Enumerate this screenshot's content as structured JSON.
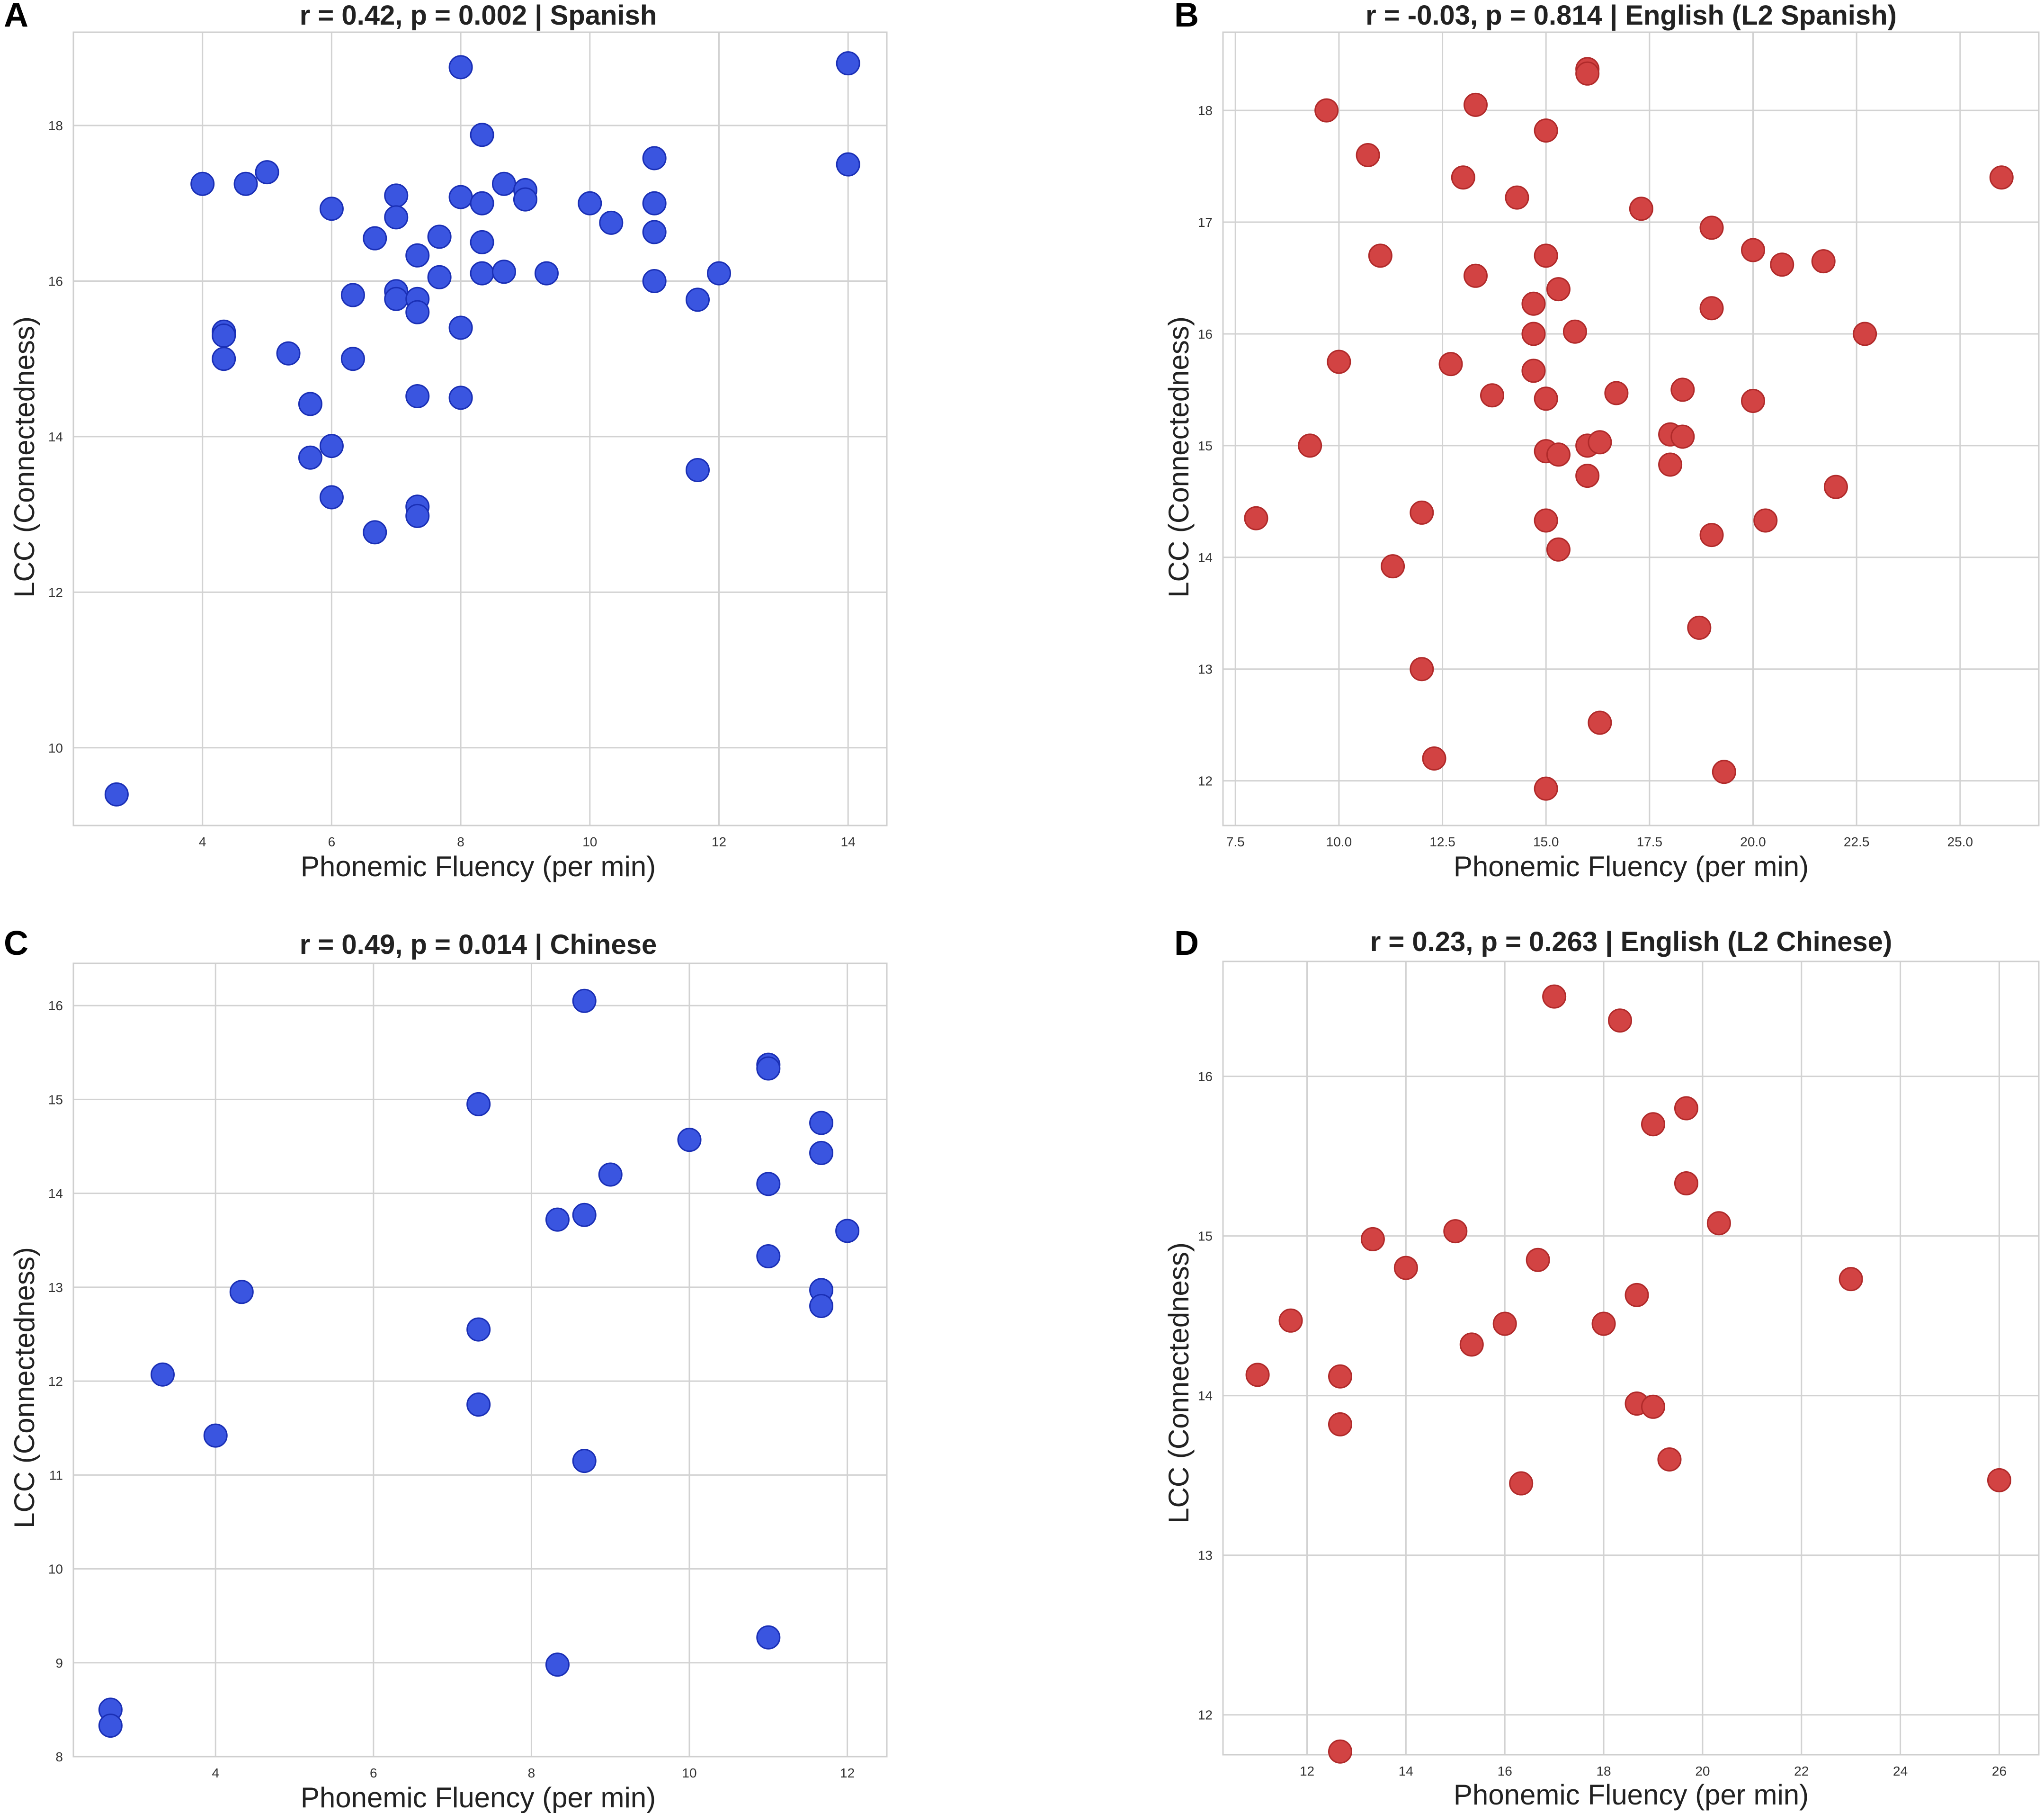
{
  "chart_data": [
    {
      "panel": "A",
      "type": "scatter",
      "title": "r = 0.42, p = 0.002 | Spanish",
      "xlabel": "Phonemic Fluency (per min)",
      "ylabel": "LCC (Connectedness)",
      "xlim": [
        2.0,
        14.6
      ],
      "ylim": [
        9.0,
        19.2
      ],
      "xticks": [
        4,
        6,
        8,
        10,
        12,
        14
      ],
      "xtick_labels": [
        "4",
        "6",
        "8",
        "10",
        "12",
        "14"
      ],
      "yticks": [
        10,
        12,
        14,
        16,
        18
      ],
      "ytick_labels": [
        "10",
        "12",
        "14",
        "16",
        "18"
      ],
      "marker_color": "#3a55e0",
      "marker_edge": "#1a2fb5",
      "points": [
        [
          2.67,
          9.4
        ],
        [
          4.0,
          17.25
        ],
        [
          4.33,
          15.35
        ],
        [
          4.33,
          15.3
        ],
        [
          4.33,
          15.0
        ],
        [
          4.67,
          17.25
        ],
        [
          5.0,
          17.4
        ],
        [
          5.33,
          15.07
        ],
        [
          5.67,
          14.42
        ],
        [
          5.67,
          13.73
        ],
        [
          6.0,
          16.93
        ],
        [
          6.0,
          13.88
        ],
        [
          6.0,
          13.22
        ],
        [
          6.33,
          15.82
        ],
        [
          6.33,
          15.0
        ],
        [
          6.67,
          16.55
        ],
        [
          6.67,
          12.77
        ],
        [
          7.0,
          17.1
        ],
        [
          7.0,
          16.82
        ],
        [
          7.0,
          15.87
        ],
        [
          7.0,
          15.77
        ],
        [
          7.33,
          16.33
        ],
        [
          7.33,
          15.77
        ],
        [
          7.33,
          15.6
        ],
        [
          7.33,
          14.52
        ],
        [
          7.33,
          13.1
        ],
        [
          7.33,
          12.98
        ],
        [
          7.67,
          16.57
        ],
        [
          7.67,
          16.05
        ],
        [
          8.0,
          18.75
        ],
        [
          8.0,
          17.08
        ],
        [
          8.0,
          15.4
        ],
        [
          8.0,
          14.5
        ],
        [
          8.33,
          17.88
        ],
        [
          8.33,
          17.0
        ],
        [
          8.33,
          16.5
        ],
        [
          8.33,
          16.1
        ],
        [
          8.67,
          17.25
        ],
        [
          8.67,
          16.12
        ],
        [
          9.0,
          17.17
        ],
        [
          9.0,
          17.05
        ],
        [
          9.33,
          16.1
        ],
        [
          10.0,
          17.0
        ],
        [
          10.33,
          16.75
        ],
        [
          11.0,
          17.58
        ],
        [
          11.0,
          17.0
        ],
        [
          11.0,
          16.63
        ],
        [
          11.0,
          16.0
        ],
        [
          11.67,
          15.76
        ],
        [
          11.67,
          13.57
        ],
        [
          12.0,
          16.1
        ],
        [
          14.0,
          18.8
        ],
        [
          14.0,
          17.5
        ]
      ]
    },
    {
      "panel": "B",
      "type": "scatter",
      "title": "r = -0.03, p = 0.814 | English (L2 Spanish)",
      "xlabel": "Phonemic Fluency (per min)",
      "ylabel": "LCC (Connectedness)",
      "xlim": [
        7.2,
        26.9
      ],
      "ylim": [
        11.6,
        18.7
      ],
      "xticks": [
        7.5,
        10.0,
        12.5,
        15.0,
        17.5,
        20.0,
        22.5,
        25.0
      ],
      "xtick_labels": [
        "7.5",
        "10.0",
        "12.5",
        "15.0",
        "17.5",
        "20.0",
        "22.5",
        "25.0"
      ],
      "yticks": [
        12,
        13,
        14,
        15,
        16,
        17,
        18
      ],
      "ytick_labels": [
        "12",
        "13",
        "14",
        "15",
        "16",
        "17",
        "18"
      ],
      "marker_color": "#d24343",
      "marker_edge": "#b02a2a",
      "points": [
        [
          8.0,
          14.35
        ],
        [
          9.3,
          15.0
        ],
        [
          9.7,
          18.0
        ],
        [
          10.0,
          15.75
        ],
        [
          10.7,
          17.6
        ],
        [
          11.0,
          16.7
        ],
        [
          11.3,
          13.92
        ],
        [
          12.0,
          14.4
        ],
        [
          12.0,
          13.0
        ],
        [
          12.3,
          12.2
        ],
        [
          12.7,
          15.73
        ],
        [
          13.0,
          17.4
        ],
        [
          13.3,
          18.05
        ],
        [
          13.3,
          16.52
        ],
        [
          13.7,
          15.45
        ],
        [
          14.3,
          17.22
        ],
        [
          14.7,
          16.27
        ],
        [
          14.7,
          16.0
        ],
        [
          14.7,
          15.67
        ],
        [
          15.0,
          17.82
        ],
        [
          15.0,
          16.7
        ],
        [
          15.0,
          15.42
        ],
        [
          15.0,
          14.95
        ],
        [
          15.0,
          14.33
        ],
        [
          15.0,
          11.93
        ],
        [
          15.3,
          16.4
        ],
        [
          15.3,
          14.92
        ],
        [
          15.3,
          14.07
        ],
        [
          15.7,
          16.02
        ],
        [
          16.0,
          18.37
        ],
        [
          16.0,
          18.33
        ],
        [
          16.0,
          15.0
        ],
        [
          16.0,
          14.73
        ],
        [
          16.3,
          15.03
        ],
        [
          16.3,
          12.52
        ],
        [
          16.7,
          15.47
        ],
        [
          17.3,
          17.12
        ],
        [
          18.0,
          15.1
        ],
        [
          18.0,
          14.83
        ],
        [
          18.3,
          15.5
        ],
        [
          18.3,
          15.08
        ],
        [
          18.7,
          13.37
        ],
        [
          19.0,
          16.95
        ],
        [
          19.0,
          16.23
        ],
        [
          19.0,
          14.2
        ],
        [
          19.3,
          12.08
        ],
        [
          20.0,
          16.75
        ],
        [
          20.0,
          15.4
        ],
        [
          20.3,
          14.33
        ],
        [
          20.7,
          16.62
        ],
        [
          21.7,
          16.65
        ],
        [
          22.0,
          14.63
        ],
        [
          22.7,
          16.0
        ],
        [
          26.0,
          17.4
        ]
      ]
    },
    {
      "panel": "C",
      "type": "scatter",
      "title": "r = 0.49, p = 0.014 | Chinese",
      "xlabel": "Phonemic Fluency (per min)",
      "ylabel": "LCC (Connectedness)",
      "xlim": [
        2.2,
        12.5
      ],
      "ylim": [
        8.0,
        16.45
      ],
      "xticks": [
        4,
        6,
        8,
        10,
        12
      ],
      "xtick_labels": [
        "4",
        "6",
        "8",
        "10",
        "12"
      ],
      "yticks": [
        8,
        9,
        10,
        11,
        12,
        13,
        14,
        15,
        16
      ],
      "ytick_labels": [
        "8",
        "9",
        "10",
        "11",
        "12",
        "13",
        "14",
        "15",
        "16"
      ],
      "marker_color": "#3a55e0",
      "marker_edge": "#1a2fb5",
      "points": [
        [
          2.67,
          8.5
        ],
        [
          2.67,
          8.33
        ],
        [
          3.33,
          12.07
        ],
        [
          4.0,
          11.42
        ],
        [
          4.33,
          12.95
        ],
        [
          7.33,
          14.95
        ],
        [
          7.33,
          12.55
        ],
        [
          7.33,
          11.75
        ],
        [
          8.33,
          13.72
        ],
        [
          8.33,
          8.98
        ],
        [
          8.67,
          16.05
        ],
        [
          8.67,
          13.77
        ],
        [
          8.67,
          11.15
        ],
        [
          9.0,
          14.2
        ],
        [
          10.0,
          14.57
        ],
        [
          11.0,
          15.37
        ],
        [
          11.0,
          15.33
        ],
        [
          11.0,
          14.1
        ],
        [
          11.0,
          13.33
        ],
        [
          11.0,
          9.27
        ],
        [
          11.67,
          14.75
        ],
        [
          11.67,
          14.43
        ],
        [
          11.67,
          12.97
        ],
        [
          11.67,
          12.8
        ],
        [
          12.0,
          13.6
        ]
      ]
    },
    {
      "panel": "D",
      "type": "scatter",
      "title": "r = 0.23, p = 0.263 | English (L2 Chinese)",
      "xlabel": "Phonemic Fluency (per min)",
      "ylabel": "LCC (Connectedness)",
      "xlim": [
        10.3,
        26.8
      ],
      "ylim": [
        11.75,
        16.72
      ],
      "xticks": [
        12,
        14,
        16,
        18,
        20,
        22,
        24,
        26
      ],
      "xtick_labels": [
        "12",
        "14",
        "16",
        "18",
        "20",
        "22",
        "24",
        "26"
      ],
      "yticks": [
        12,
        13,
        14,
        15,
        16
      ],
      "ytick_labels": [
        "12",
        "13",
        "14",
        "15",
        "16"
      ],
      "marker_color": "#d24343",
      "marker_edge": "#b02a2a",
      "points": [
        [
          11.0,
          14.13
        ],
        [
          11.67,
          14.47
        ],
        [
          12.67,
          14.12
        ],
        [
          12.67,
          13.82
        ],
        [
          12.67,
          11.77
        ],
        [
          13.33,
          14.98
        ],
        [
          14.0,
          14.8
        ],
        [
          15.0,
          15.03
        ],
        [
          15.33,
          14.32
        ],
        [
          16.0,
          14.45
        ],
        [
          16.33,
          13.45
        ],
        [
          16.67,
          14.85
        ],
        [
          17.0,
          16.5
        ],
        [
          18.0,
          14.45
        ],
        [
          18.33,
          16.35
        ],
        [
          18.67,
          14.63
        ],
        [
          18.67,
          13.95
        ],
        [
          19.0,
          15.7
        ],
        [
          19.0,
          13.93
        ],
        [
          19.33,
          13.6
        ],
        [
          19.67,
          15.8
        ],
        [
          19.67,
          15.33
        ],
        [
          20.33,
          15.08
        ],
        [
          23.0,
          14.73
        ],
        [
          26.0,
          13.47
        ]
      ]
    }
  ]
}
